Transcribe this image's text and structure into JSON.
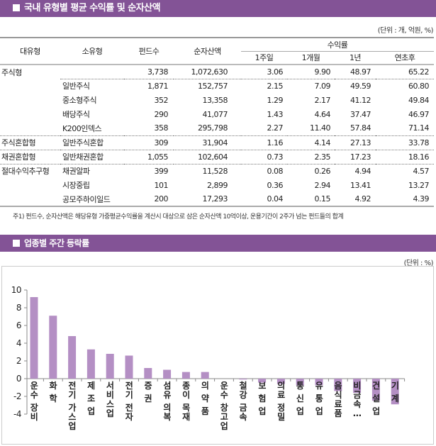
{
  "section1": {
    "title": "국내 유형별 평균 수익률 및 순자산액",
    "unit": "(단위 : 개, 억원, %)",
    "headers": {
      "major": "대유형",
      "minor": "소유형",
      "funds": "펀드수",
      "assets": "순자산액",
      "returns": "수익률",
      "w1": "1주일",
      "m1": "1개월",
      "y1": "1년",
      "ytd": "연초후"
    },
    "rows": [
      [
        "주식형",
        "",
        "3,738",
        "1,072,630",
        "3.06",
        "9.90",
        "48.97",
        "65.22"
      ],
      [
        "",
        "일반주식",
        "1,871",
        "152,757",
        "2.15",
        "7.09",
        "49.59",
        "60.80"
      ],
      [
        "",
        "중소형주식",
        "352",
        "13,358",
        "1.29",
        "2.17",
        "41.12",
        "49.84"
      ],
      [
        "",
        "배당주식",
        "290",
        "41,077",
        "1.43",
        "4.64",
        "37.47",
        "46.97"
      ],
      [
        "",
        "K200인덱스",
        "358",
        "295,798",
        "2.27",
        "11.40",
        "57.84",
        "71.14"
      ],
      [
        "주식혼합형",
        "일반주식혼합",
        "309",
        "31,904",
        "1.16",
        "4.14",
        "27.13",
        "33.78"
      ],
      [
        "채권혼합형",
        "일반채권혼합",
        "1,055",
        "102,604",
        "0.73",
        "2.35",
        "17.23",
        "18.16"
      ],
      [
        "절대수익추구형",
        "채권알파",
        "399",
        "11,528",
        "0.08",
        "0.26",
        "4.94",
        "4.57"
      ],
      [
        "",
        "시장중립",
        "101",
        "2,899",
        "0.36",
        "2.94",
        "13.41",
        "13.27"
      ],
      [
        "",
        "공모주하이일드",
        "200",
        "17,293",
        "0.04",
        "0.15",
        "4.92",
        "4.39"
      ]
    ],
    "note": "주1) 펀드수, 순자산액은 해당유형 가중평균수익률을 계산시 대상으로 삼은 순자산액 10억이상, 운용기간이 2주가 넘는 펀드들의 합계"
  },
  "section2": {
    "title": "업종별 주간 등락률",
    "unit": "(단위 : %)"
  },
  "colors": {
    "header": "#835396",
    "bar": "#b48fc4"
  },
  "chart_data": {
    "type": "bar",
    "ylim": [
      -4,
      10
    ],
    "yticks": [
      "10",
      "8",
      "6",
      "4",
      "2",
      "0",
      "-2",
      "-4"
    ],
    "categories": [
      "운수 장비",
      "화 학",
      "전기 가스업",
      "제 조 업",
      "서비스업",
      "전기 전자",
      "증 권",
      "섬유 의복",
      "종이 목재",
      "의 약 품",
      "운수 창고업",
      "철강 금속",
      "보 험 업",
      "의료 정밀",
      "통 신 업",
      "유 통 업",
      "음식료품",
      "비금속…",
      "건 설 업",
      "기 계"
    ],
    "values": [
      9.2,
      7.1,
      4.8,
      3.3,
      2.8,
      2.6,
      1.2,
      1.0,
      0.75,
      0.75,
      0.0,
      -0.1,
      -0.45,
      -0.6,
      -0.75,
      -0.75,
      -1.4,
      -1.6,
      -2.5,
      -2.9
    ]
  }
}
